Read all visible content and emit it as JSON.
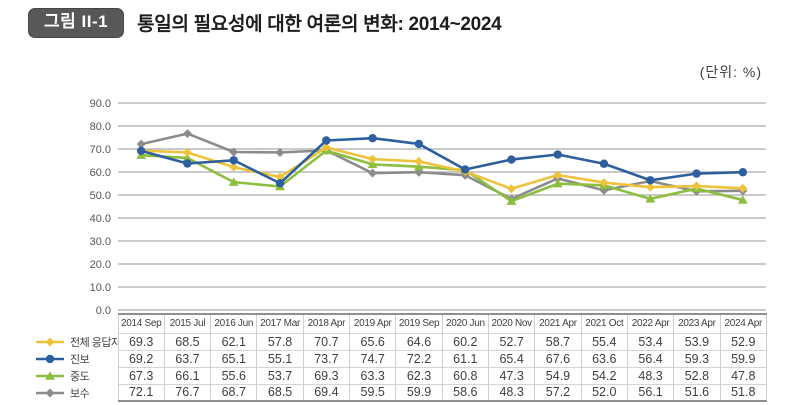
{
  "header": {
    "badge": "그림 II-1",
    "title": "통일의 필요성에 대한 여론의 변화: 2014~2024",
    "unit": "(단위:  %)"
  },
  "chart_data": {
    "type": "line",
    "title": "통일의 필요성에 대한 여론의 변화: 2014~2024",
    "unit": "%",
    "categories": [
      "2014 Sep",
      "2015 Jul",
      "2016 Jun",
      "2017 Mar",
      "2018 Apr",
      "2019 Apr",
      "2019 Sep",
      "2020 Jun",
      "2020 Nov",
      "2021 Apr",
      "2021 Oct",
      "2022 Apr",
      "2023 Apr",
      "2024 Apr"
    ],
    "series": [
      {
        "id": "all-respondents",
        "name": "전체 응답자",
        "color": "#EFC23B",
        "marker": "diamond",
        "values": [
          69.3,
          68.5,
          62.1,
          57.8,
          70.7,
          65.6,
          64.6,
          60.2,
          52.7,
          58.7,
          55.4,
          53.4,
          53.9,
          52.9
        ]
      },
      {
        "id": "progressive",
        "name": "진보",
        "color": "#2D5F9E",
        "marker": "circle",
        "values": [
          69.2,
          63.7,
          65.1,
          55.1,
          73.7,
          74.7,
          72.2,
          61.1,
          65.4,
          67.6,
          63.6,
          56.4,
          59.3,
          59.9
        ]
      },
      {
        "id": "moderate",
        "name": "중도",
        "color": "#8CBE3F",
        "marker": "triangle",
        "values": [
          67.3,
          66.1,
          55.6,
          53.7,
          69.3,
          63.3,
          62.3,
          60.8,
          47.3,
          54.9,
          54.2,
          48.3,
          52.8,
          47.8
        ]
      },
      {
        "id": "conservative",
        "name": "보수",
        "color": "#8C8C8C",
        "marker": "diamond",
        "values": [
          72.1,
          76.7,
          68.7,
          68.5,
          69.4,
          59.5,
          59.9,
          58.6,
          48.3,
          57.2,
          52.0,
          56.1,
          51.6,
          51.8
        ]
      }
    ],
    "xlabel": "",
    "ylabel": "",
    "ylim": [
      0,
      90
    ],
    "yticks": [
      0,
      10,
      20,
      30,
      40,
      50,
      60,
      70,
      80,
      90
    ],
    "ytick_labels": [
      "0.0",
      "10.0",
      "20.0",
      "30.0",
      "40.0",
      "50.0",
      "60.0",
      "70.0",
      "80.0",
      "90.0"
    ],
    "grid": "horizontal",
    "gridline_color": "#ABABAB",
    "tick_label_color": "#575757",
    "legend_position": "bottom-left-of-table",
    "value_format": "one-decimal"
  }
}
